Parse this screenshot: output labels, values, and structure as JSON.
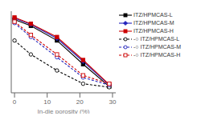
{
  "chart_data": {
    "type": "line",
    "x": [
      0,
      5,
      13,
      21,
      29
    ],
    "xlabel": "In-die porosity (%)",
    "xlim": [
      -1,
      31
    ],
    "xticks": [
      0,
      10,
      20,
      30
    ],
    "ylim": [
      -0.05,
      1.12
    ],
    "tick_labels": "x",
    "grid": false,
    "legend": "right",
    "series": [
      {
        "name": "ITZ/HPMCAS-L",
        "color": "#000000",
        "marker": "square",
        "line_style": "solid",
        "values": [
          1.0,
          0.91,
          0.7,
          0.36,
          0.04
        ]
      },
      {
        "name": "ITZ/HPMCAS-M",
        "color": "#2222bb",
        "marker": "diamond",
        "line_style": "solid",
        "values": [
          1.02,
          0.93,
          0.73,
          0.4,
          0.06
        ]
      },
      {
        "name": "ITZ/HPMCAS-H",
        "color": "#cc0000",
        "marker": "square",
        "line_style": "solid",
        "values": [
          1.03,
          0.94,
          0.75,
          0.42,
          0.07
        ]
      },
      {
        "name": "-○ ITZ/HPMCAS-L",
        "color": "#000000",
        "marker": "circle",
        "line_style": "dashed",
        "values": [
          0.7,
          0.5,
          0.27,
          0.08,
          0.03
        ]
      },
      {
        "name": "-○ ITZ/HPMCAS-M",
        "color": "#2222bb",
        "marker": "circle",
        "line_style": "dashed",
        "values": [
          0.95,
          0.75,
          0.46,
          0.17,
          0.06
        ]
      },
      {
        "name": "-○ ITZ/HPMCAS-H",
        "color": "#cc0000",
        "marker": "square",
        "line_style": "dashed",
        "values": [
          0.97,
          0.78,
          0.5,
          0.2,
          0.08
        ]
      }
    ]
  }
}
